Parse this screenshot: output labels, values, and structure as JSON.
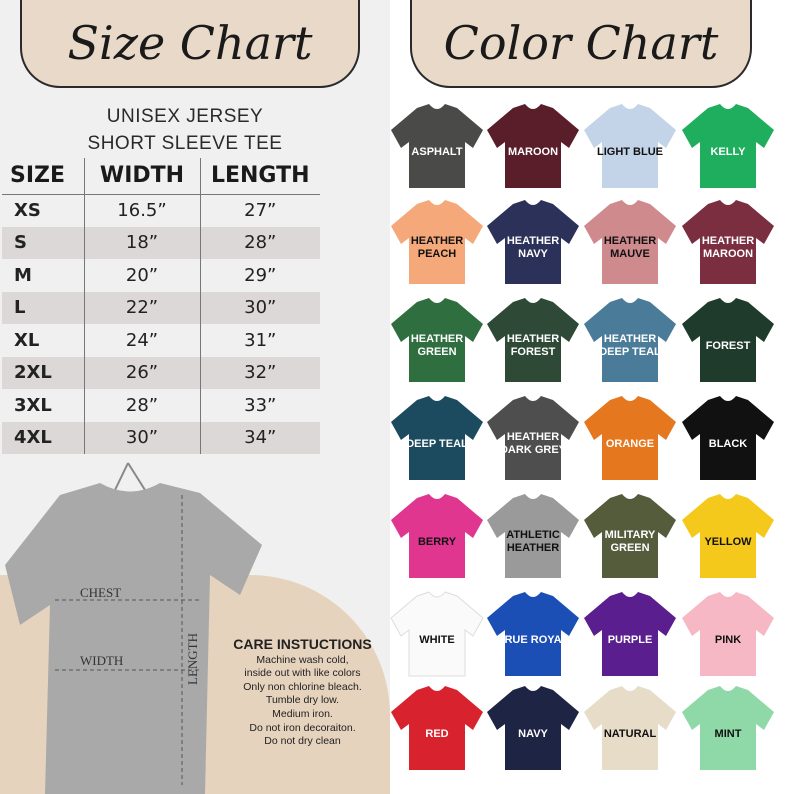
{
  "size_chart": {
    "title": "Size Chart",
    "subtitle": [
      "UNISEX JERSEY",
      "SHORT SLEEVE TEE"
    ],
    "headers": [
      "SIZE",
      "WIDTH",
      "LENGTH"
    ],
    "rows": [
      [
        "XS",
        "16.5”",
        "27”"
      ],
      [
        "S",
        "18”",
        "28”"
      ],
      [
        "M",
        "20”",
        "29”"
      ],
      [
        "L",
        "22”",
        "30”"
      ],
      [
        "XL",
        "24”",
        "31”"
      ],
      [
        "2XL",
        "26”",
        "32”"
      ],
      [
        "3XL",
        "28”",
        "33”"
      ],
      [
        "4XL",
        "30”",
        "34”"
      ]
    ],
    "diagram_labels": {
      "chest": "CHEST",
      "width": "WIDTH",
      "length": "LENGTH"
    }
  },
  "care": {
    "title": "CARE INSTUCTIONS",
    "lines": [
      "Machine wash cold,",
      "inside out with like colors",
      "Only non chlorine bleach.",
      "Tumble dry low.",
      "Medium iron.",
      "Do not iron decoraiton.",
      "Do not dry clean"
    ]
  },
  "color_chart": {
    "title": "Color Chart",
    "colors": [
      {
        "name": "ASPHALT",
        "hex": "#4a4a48"
      },
      {
        "name": "MAROON",
        "hex": "#5a1d2a"
      },
      {
        "name": "LIGHT BLUE",
        "hex": "#c3d3e8",
        "dark": true
      },
      {
        "name": "KELLY",
        "hex": "#1fae5e"
      },
      {
        "name": "HEATHER PEACH",
        "hex": "#f5a87a",
        "dark": true
      },
      {
        "name": "HEATHER NAVY",
        "hex": "#2b3158"
      },
      {
        "name": "HEATHER MAUVE",
        "hex": "#cf8a8e",
        "dark": true
      },
      {
        "name": "HEATHER MAROON",
        "hex": "#7a2e40"
      },
      {
        "name": "HEATHER GREEN",
        "hex": "#2f6e3f"
      },
      {
        "name": "HEATHER FOREST",
        "hex": "#2e4a36"
      },
      {
        "name": "HEATHER DEEP TEAL",
        "hex": "#4a7c9a"
      },
      {
        "name": "FOREST",
        "hex": "#1f3b2c"
      },
      {
        "name": "DEEP TEAL",
        "hex": "#1c4a5e"
      },
      {
        "name": "HEATHER DARK GREY",
        "hex": "#4e4e4e"
      },
      {
        "name": "ORANGE",
        "hex": "#e5771f"
      },
      {
        "name": "BLACK",
        "hex": "#111111"
      },
      {
        "name": "BERRY",
        "hex": "#e0368f",
        "dark": true
      },
      {
        "name": "ATHLETIC HEATHER",
        "hex": "#9a9a9a",
        "dark": true
      },
      {
        "name": "MILITARY GREEN",
        "hex": "#545c3c"
      },
      {
        "name": "YELLOW",
        "hex": "#f5c91c",
        "dark": true
      },
      {
        "name": "WHITE",
        "hex": "#fafafa",
        "dark": true
      },
      {
        "name": "TRUE ROYAL",
        "hex": "#1b4fb6"
      },
      {
        "name": "PURPLE",
        "hex": "#5a1e8e"
      },
      {
        "name": "PINK",
        "hex": "#f6b8c4",
        "dark": true
      },
      {
        "name": "RED",
        "hex": "#d8232e"
      },
      {
        "name": "NAVY",
        "hex": "#1e2444"
      },
      {
        "name": "NATURAL",
        "hex": "#e6dcc8",
        "dark": true
      },
      {
        "name": "MINT",
        "hex": "#8fd8a8",
        "dark": true
      }
    ]
  }
}
